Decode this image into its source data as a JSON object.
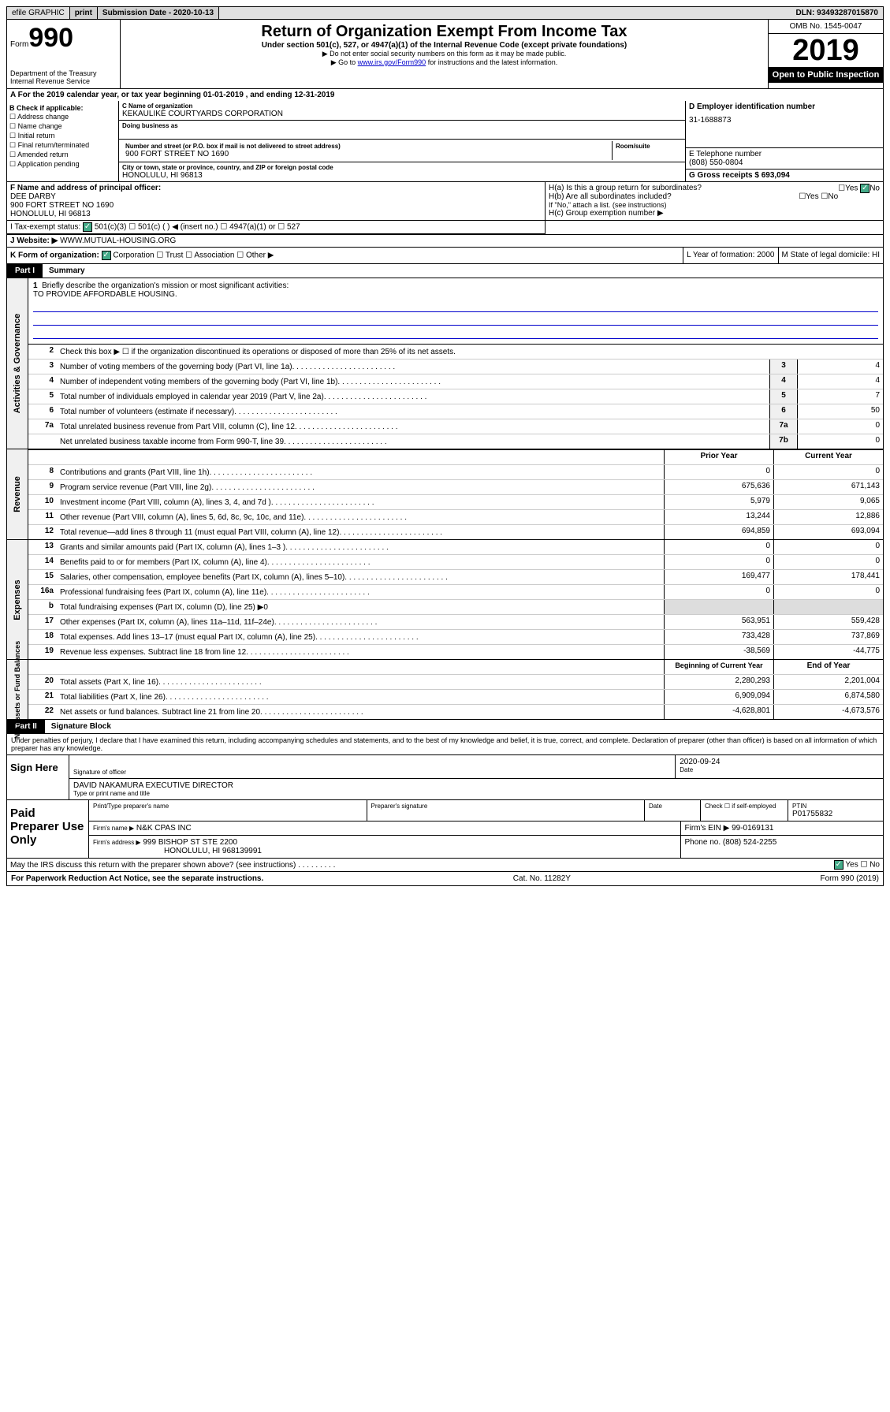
{
  "top": {
    "efile": "efile GRAPHIC",
    "print": "print",
    "sub_label": "Submission Date - 2020-10-13",
    "dln": "DLN: 93493287015870"
  },
  "header": {
    "form_word": "Form",
    "form_num": "990",
    "dept": "Department of the Treasury\nInternal Revenue Service",
    "title": "Return of Organization Exempt From Income Tax",
    "subtitle": "Under section 501(c), 527, or 4947(a)(1) of the Internal Revenue Code (except private foundations)",
    "notice1": "▶ Do not enter social security numbers on this form as it may be made public.",
    "notice2_pre": "▶ Go to ",
    "notice2_link": "www.irs.gov/Form990",
    "notice2_post": " for instructions and the latest information.",
    "omb": "OMB No. 1545-0047",
    "year": "2019",
    "open": "Open to Public Inspection"
  },
  "year_line": "A For the 2019 calendar year, or tax year beginning 01-01-2019     , and ending 12-31-2019",
  "boxB": {
    "title": "B Check if applicable:",
    "items": [
      "☐ Address change",
      "☐ Name change",
      "☐ Initial return",
      "☐ Final return/terminated",
      "☐ Amended return",
      "☐ Application pending"
    ]
  },
  "boxC": {
    "name_label": "C Name of organization",
    "name": "KEKAULIKE COURTYARDS CORPORATION",
    "dba_label": "Doing business as",
    "addr_label": "Number and street (or P.O. box if mail is not delivered to street address)",
    "room_label": "Room/suite",
    "addr": "900 FORT STREET NO 1690",
    "city_label": "City or town, state or province, country, and ZIP or foreign postal code",
    "city": "HONOLULU, HI  96813"
  },
  "boxD": {
    "label": "D Employer identification number",
    "val": "31-1688873"
  },
  "boxE": {
    "label": "E Telephone number",
    "val": "(808) 550-0804"
  },
  "boxG": {
    "label": "G Gross receipts $ 693,094"
  },
  "boxF": {
    "label": "F  Name and address of principal officer:",
    "name": "DEE DARBY",
    "addr1": "900 FORT STREET NO 1690",
    "addr2": "HONOLULU, HI  96813"
  },
  "boxH": {
    "a": "H(a)  Is this a group return for subordinates?",
    "b": "H(b)  Are all subordinates included?",
    "b_note": "If \"No,\" attach a list. (see instructions)",
    "c": "H(c)  Group exemption number ▶"
  },
  "rowI": {
    "label": "I   Tax-exempt status:",
    "opts": "501(c)(3)     ☐  501(c) (  ) ◀ (insert no.)     ☐  4947(a)(1) or   ☐  527"
  },
  "rowJ": {
    "label": "J   Website: ▶",
    "val": "WWW.MUTUAL-HOUSING.ORG"
  },
  "rowK": {
    "label": "K Form of organization:",
    "opts": "Corporation  ☐ Trust  ☐ Association  ☐ Other ▶",
    "l": "L Year of formation: 2000",
    "m": "M State of legal domicile: HI"
  },
  "part1": {
    "tab": "Part I",
    "title": "Summary"
  },
  "summary": {
    "q1": "Briefly describe the organization's mission or most significant activities:",
    "mission": "TO PROVIDE AFFORDABLE HOUSING.",
    "q2": "Check this box ▶ ☐  if the organization discontinued its operations or disposed of more than 25% of its net assets.",
    "lines_a": [
      {
        "n": "3",
        "t": "Number of voting members of the governing body (Part VI, line 1a)",
        "box": "3",
        "v": "4"
      },
      {
        "n": "4",
        "t": "Number of independent voting members of the governing body (Part VI, line 1b)",
        "box": "4",
        "v": "4"
      },
      {
        "n": "5",
        "t": "Total number of individuals employed in calendar year 2019 (Part V, line 2a)",
        "box": "5",
        "v": "7"
      },
      {
        "n": "6",
        "t": "Total number of volunteers (estimate if necessary)",
        "box": "6",
        "v": "50"
      },
      {
        "n": "7a",
        "t": "Total unrelated business revenue from Part VIII, column (C), line 12",
        "box": "7a",
        "v": "0"
      },
      {
        "n": "",
        "t": "Net unrelated business taxable income from Form 990-T, line 39",
        "box": "7b",
        "v": "0"
      }
    ],
    "hdr_prior": "Prior Year",
    "hdr_current": "Current Year",
    "rev": [
      {
        "n": "8",
        "t": "Contributions and grants (Part VIII, line 1h)",
        "p": "0",
        "c": "0"
      },
      {
        "n": "9",
        "t": "Program service revenue (Part VIII, line 2g)",
        "p": "675,636",
        "c": "671,143"
      },
      {
        "n": "10",
        "t": "Investment income (Part VIII, column (A), lines 3, 4, and 7d )",
        "p": "5,979",
        "c": "9,065"
      },
      {
        "n": "11",
        "t": "Other revenue (Part VIII, column (A), lines 5, 6d, 8c, 9c, 10c, and 11e)",
        "p": "13,244",
        "c": "12,886"
      },
      {
        "n": "12",
        "t": "Total revenue—add lines 8 through 11 (must equal Part VIII, column (A), line 12)",
        "p": "694,859",
        "c": "693,094"
      }
    ],
    "exp": [
      {
        "n": "13",
        "t": "Grants and similar amounts paid (Part IX, column (A), lines 1–3 )",
        "p": "0",
        "c": "0"
      },
      {
        "n": "14",
        "t": "Benefits paid to or for members (Part IX, column (A), line 4)",
        "p": "0",
        "c": "0"
      },
      {
        "n": "15",
        "t": "Salaries, other compensation, employee benefits (Part IX, column (A), lines 5–10)",
        "p": "169,477",
        "c": "178,441"
      },
      {
        "n": "16a",
        "t": "Professional fundraising fees (Part IX, column (A), line 11e)",
        "p": "0",
        "c": "0"
      },
      {
        "n": "b",
        "t": "Total fundraising expenses (Part IX, column (D), line 25) ▶0",
        "p": "",
        "c": ""
      },
      {
        "n": "17",
        "t": "Other expenses (Part IX, column (A), lines 11a–11d, 11f–24e)",
        "p": "563,951",
        "c": "559,428"
      },
      {
        "n": "18",
        "t": "Total expenses. Add lines 13–17 (must equal Part IX, column (A), line 25)",
        "p": "733,428",
        "c": "737,869"
      },
      {
        "n": "19",
        "t": "Revenue less expenses. Subtract line 18 from line 12",
        "p": "-38,569",
        "c": "-44,775"
      }
    ],
    "hdr_begin": "Beginning of Current Year",
    "hdr_end": "End of Year",
    "net": [
      {
        "n": "20",
        "t": "Total assets (Part X, line 16)",
        "p": "2,280,293",
        "c": "2,201,004"
      },
      {
        "n": "21",
        "t": "Total liabilities (Part X, line 26)",
        "p": "6,909,094",
        "c": "6,874,580"
      },
      {
        "n": "22",
        "t": "Net assets or fund balances. Subtract line 21 from line 20",
        "p": "-4,628,801",
        "c": "-4,673,576"
      }
    ]
  },
  "vtabs": {
    "gov": "Activities & Governance",
    "rev": "Revenue",
    "exp": "Expenses",
    "net": "Net Assets or\nFund Balances"
  },
  "part2": {
    "tab": "Part II",
    "title": "Signature Block"
  },
  "perjury": "Under penalties of perjury, I declare that I have examined this return, including accompanying schedules and statements, and to the best of my knowledge and belief, it is true, correct, and complete. Declaration of preparer (other than officer) is based on all information of which preparer has any knowledge.",
  "sign": {
    "label": "Sign Here",
    "sig_officer": "Signature of officer",
    "date": "2020-09-24",
    "date_label": "Date",
    "name": "DAVID NAKAMURA  EXECUTIVE DIRECTOR",
    "name_label": "Type or print name and title"
  },
  "paid": {
    "label": "Paid Preparer Use Only",
    "h1": "Print/Type preparer's name",
    "h2": "Preparer's signature",
    "h3": "Date",
    "h4": "Check ☐ if self-employed",
    "h5_label": "PTIN",
    "h5": "P01755832",
    "firm_name_label": "Firm's name    ▶",
    "firm_name": "N&K CPAS INC",
    "firm_ein": "Firm's EIN ▶ 99-0169131",
    "firm_addr_label": "Firm's address ▶",
    "firm_addr": "999 BISHOP ST STE 2200",
    "firm_city": "HONOLULU, HI  968139991",
    "phone": "Phone no. (808) 524-2255"
  },
  "discuss": "May the IRS discuss this return with the preparer shown above? (see instructions)   .   .   .   .   .   .   .   .   .",
  "footer": {
    "pra": "For Paperwork Reduction Act Notice, see the separate instructions.",
    "cat": "Cat. No. 11282Y",
    "form": "Form 990 (2019)"
  }
}
